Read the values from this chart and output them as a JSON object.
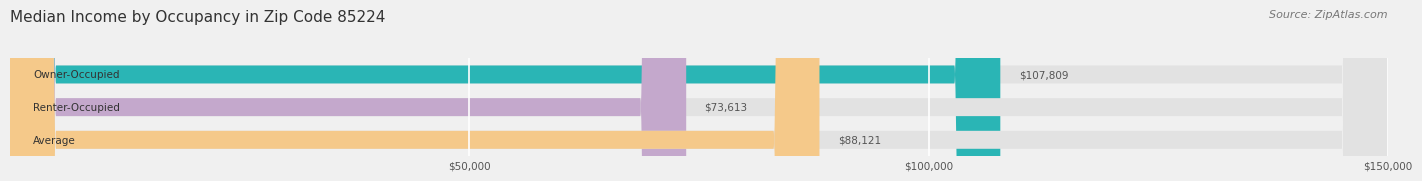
{
  "title": "Median Income by Occupancy in Zip Code 85224",
  "source": "Source: ZipAtlas.com",
  "categories": [
    "Owner-Occupied",
    "Renter-Occupied",
    "Average"
  ],
  "values": [
    107809,
    73613,
    88121
  ],
  "bar_colors": [
    "#2ab5b5",
    "#c4a8cc",
    "#f5c98a"
  ],
  "background_color": "#f0f0f0",
  "bar_bg_color": "#e2e2e2",
  "xlim": [
    0,
    150000
  ],
  "xticks": [
    0,
    50000,
    100000,
    150000
  ],
  "xtick_labels": [
    "",
    "$50,000",
    "$100,000",
    "$150,000"
  ],
  "value_labels": [
    "$107,809",
    "$73,613",
    "$88,121"
  ],
  "title_fontsize": 11,
  "source_fontsize": 8,
  "bar_label_fontsize": 7.5,
  "tick_fontsize": 7.5,
  "cat_label_fontsize": 7.5
}
